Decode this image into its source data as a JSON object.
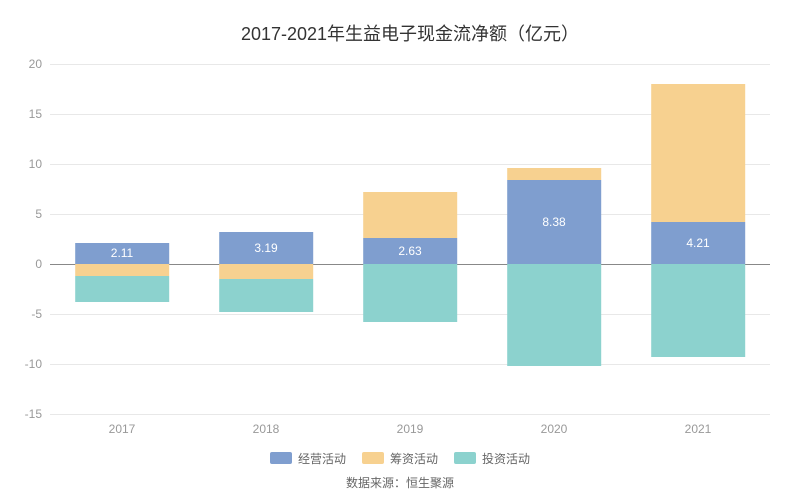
{
  "chart": {
    "type": "stacked-bar",
    "title": "2017-2021年生益电子现金流净额（亿元）",
    "title_fontsize": 18,
    "title_color": "#333333",
    "background_color": "#ffffff",
    "grid_color": "#e8e8e8",
    "zero_line_color": "#888888",
    "xaxis": {
      "categories": [
        "2017",
        "2018",
        "2019",
        "2020",
        "2021"
      ],
      "tick_fontsize": 12,
      "tick_color": "#999999"
    },
    "yaxis": {
      "min": -15,
      "max": 20,
      "step": 5,
      "ticks": [
        -15,
        -10,
        -5,
        0,
        5,
        10,
        15,
        20
      ],
      "tick_fontsize": 12,
      "tick_color": "#999999"
    },
    "bar_width_ratio": 0.65,
    "series": [
      {
        "name": "经营活动",
        "color": "#7f9ecf",
        "values": [
          2.11,
          3.19,
          2.63,
          8.38,
          4.21
        ]
      },
      {
        "name": "筹资活动",
        "color": "#f7d190",
        "values": [
          -1.2,
          -1.5,
          4.6,
          1.2,
          13.8
        ]
      },
      {
        "name": "投资活动",
        "color": "#8cd2ce",
        "values": [
          -2.6,
          -3.3,
          -5.8,
          -10.2,
          -9.3
        ]
      }
    ],
    "bar_labels": [
      {
        "category_index": 0,
        "text": "2.11"
      },
      {
        "category_index": 1,
        "text": "3.19"
      },
      {
        "category_index": 2,
        "text": "2.63"
      },
      {
        "category_index": 3,
        "text": "8.38"
      },
      {
        "category_index": 4,
        "text": "4.21"
      }
    ],
    "bar_label_fontsize": 12,
    "bar_label_color": "#ffffff",
    "legend": {
      "fontsize": 12,
      "color": "#666666",
      "swatch_width": 22,
      "swatch_height": 12
    },
    "source": {
      "text": "数据来源：恒生聚源",
      "fontsize": 12,
      "color": "#666666"
    }
  }
}
